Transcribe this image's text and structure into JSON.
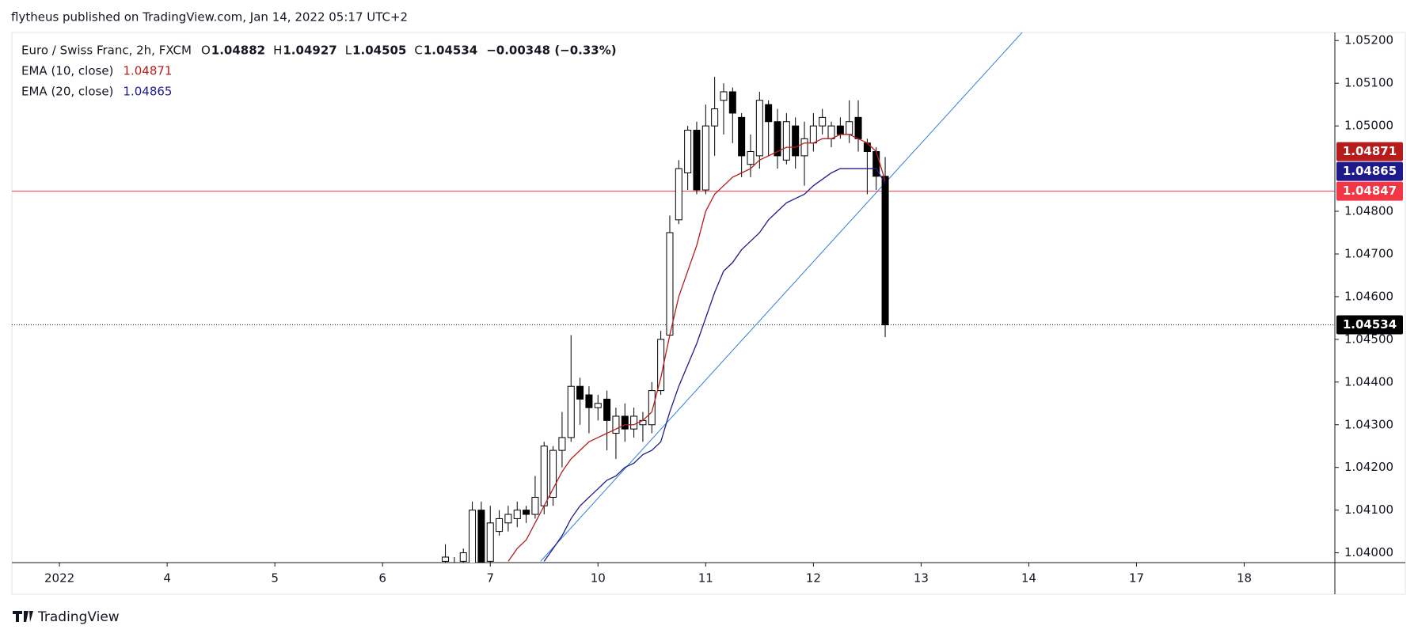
{
  "header": {
    "publisher": "flytheus published on TradingView.com, Jan 14, 2022 05:17 UTC+2",
    "footer": "TradingView"
  },
  "chart_data": {
    "type": "candlestick",
    "title": "Euro / Swiss Franc, 2h, FXCM",
    "legend_values": [
      {
        "label": "O",
        "value": "1.04882"
      },
      {
        "label": "H",
        "value": "1.04927"
      },
      {
        "label": "L",
        "value": "1.04505"
      },
      {
        "label": "C",
        "value": "1.04534"
      },
      {
        "label": "",
        "value": "−0.00348 (−0.33%)"
      }
    ],
    "x": [
      43,
      44,
      45,
      46,
      47,
      48,
      49,
      50,
      51,
      52,
      53,
      54,
      55,
      56,
      57,
      58,
      59,
      60,
      61,
      62,
      63,
      64,
      65,
      66,
      67,
      68,
      69,
      70,
      71,
      72,
      73,
      74,
      75,
      76,
      77,
      78,
      79,
      80,
      81,
      82,
      83,
      84,
      85,
      86,
      87,
      88,
      89,
      90,
      91,
      92
    ],
    "open": [
      1.0398,
      1.0397,
      1.0398,
      1.0397,
      1.041,
      1.0398,
      1.0405,
      1.0407,
      1.0408,
      1.041,
      1.0409,
      1.0411,
      1.0413,
      1.0424,
      1.0427,
      1.0439,
      1.0437,
      1.0434,
      1.0436,
      1.0428,
      1.0432,
      1.0429,
      1.043,
      1.043,
      1.0438,
      1.0451,
      1.0478,
      1.0489,
      1.0499,
      1.0485,
      1.05,
      1.0506,
      1.0508,
      1.0502,
      1.0491,
      1.0493,
      1.0505,
      1.0501,
      1.0492,
      1.05,
      1.0493,
      1.0496,
      1.05,
      1.0497,
      1.05,
      1.0498,
      1.0502,
      1.0496,
      1.0494,
      1.04882
    ],
    "high": [
      1.0402,
      1.0399,
      1.0401,
      1.0412,
      1.0412,
      1.0411,
      1.041,
      1.0411,
      1.0412,
      1.0411,
      1.0418,
      1.0426,
      1.0425,
      1.0433,
      1.0451,
      1.0441,
      1.0439,
      1.0437,
      1.0438,
      1.0434,
      1.0435,
      1.0434,
      1.0433,
      1.044,
      1.0452,
      1.0479,
      1.0492,
      1.05,
      1.0501,
      1.0505,
      1.05115,
      1.051,
      1.0509,
      1.0503,
      1.0498,
      1.0508,
      1.0506,
      1.0504,
      1.0503,
      1.0502,
      1.0501,
      1.0503,
      1.0504,
      1.0501,
      1.0502,
      1.0506,
      1.0506,
      1.0497,
      1.0495,
      1.04927
    ],
    "low": [
      1.0395,
      1.0394,
      1.0396,
      1.0395,
      1.0394,
      1.0396,
      1.0404,
      1.0405,
      1.0406,
      1.0407,
      1.0408,
      1.0409,
      1.0411,
      1.042,
      1.0426,
      1.043,
      1.0428,
      1.0431,
      1.0424,
      1.0422,
      1.0426,
      1.0427,
      1.0426,
      1.0428,
      1.0437,
      1.0451,
      1.0477,
      1.0485,
      1.0484,
      1.0484,
      1.0493,
      1.0498,
      1.0496,
      1.0488,
      1.0488,
      1.049,
      1.0493,
      1.049,
      1.0491,
      1.049,
      1.0486,
      1.0494,
      1.0498,
      1.0495,
      1.0497,
      1.0496,
      1.0494,
      1.0484,
      1.0485,
      1.04505
    ],
    "close": [
      1.0399,
      1.0396,
      1.04,
      1.041,
      1.0395,
      1.0407,
      1.0408,
      1.0409,
      1.041,
      1.0409,
      1.0413,
      1.0425,
      1.0424,
      1.0427,
      1.0439,
      1.0436,
      1.0434,
      1.0435,
      1.0431,
      1.0432,
      1.0429,
      1.0432,
      1.0431,
      1.0438,
      1.045,
      1.0475,
      1.049,
      1.0499,
      1.0485,
      1.05,
      1.0504,
      1.0508,
      1.0503,
      1.0493,
      1.0494,
      1.0506,
      1.0501,
      1.0493,
      1.0501,
      1.0493,
      1.0497,
      1.05,
      1.0502,
      1.05,
      1.0498,
      1.0501,
      1.0497,
      1.0494,
      1.04882,
      1.04534
    ],
    "series": [
      {
        "name": "EMA (10, close)",
        "color": "#b71c1c",
        "last": 1.04871,
        "x": [
          50,
          51,
          52,
          53,
          54,
          55,
          56,
          57,
          58,
          59,
          60,
          61,
          62,
          63,
          64,
          65,
          66,
          67,
          68,
          69,
          70,
          71,
          72,
          73,
          74,
          75,
          76,
          77,
          78,
          79,
          80,
          81,
          82,
          83,
          84,
          85,
          86,
          87,
          88,
          89,
          90,
          91,
          92
        ],
        "values": [
          1.0398,
          1.0401,
          1.0403,
          1.0407,
          1.0411,
          1.0415,
          1.0419,
          1.0422,
          1.0424,
          1.0426,
          1.0427,
          1.0428,
          1.0429,
          1.043,
          1.043,
          1.0431,
          1.0433,
          1.0441,
          1.0451,
          1.046,
          1.0466,
          1.0472,
          1.048,
          1.0484,
          1.0486,
          1.0488,
          1.0489,
          1.049,
          1.0492,
          1.0493,
          1.0494,
          1.0495,
          1.0495,
          1.0496,
          1.0496,
          1.0497,
          1.0497,
          1.0498,
          1.0498,
          1.0497,
          1.0496,
          1.0494,
          1.04871
        ]
      },
      {
        "name": "EMA (20, close)",
        "color": "#1f1a8c",
        "last": 1.04865,
        "x": [
          54,
          55,
          56,
          57,
          58,
          59,
          60,
          61,
          62,
          63,
          64,
          65,
          66,
          67,
          68,
          69,
          70,
          71,
          72,
          73,
          74,
          75,
          76,
          77,
          78,
          79,
          80,
          81,
          82,
          83,
          84,
          85,
          86,
          87,
          88,
          89,
          90,
          91,
          92
        ],
        "values": [
          1.0398,
          1.0401,
          1.0404,
          1.0408,
          1.0411,
          1.0413,
          1.0415,
          1.0417,
          1.0418,
          1.042,
          1.0421,
          1.0423,
          1.0424,
          1.0426,
          1.0433,
          1.0439,
          1.0444,
          1.0449,
          1.0455,
          1.0461,
          1.0466,
          1.0468,
          1.0471,
          1.0473,
          1.0475,
          1.0478,
          1.048,
          1.0482,
          1.0483,
          1.0484,
          1.0486,
          1.04875,
          1.0489,
          1.049,
          1.049,
          1.049,
          1.049,
          1.049,
          1.04865
        ]
      }
    ],
    "trendline": {
      "color": "#2f7fe0",
      "x": [
        53.6,
        107.3
      ],
      "y": [
        1.0398,
        1.0522
      ]
    },
    "hline": {
      "color": "#f23645",
      "value": 1.04847
    },
    "last_price": 1.04534,
    "xlim": [
      -5.3,
      142.1
    ],
    "ylim": [
      1.03977,
      1.05219
    ],
    "xticks": [
      {
        "value": 0,
        "label": "2022"
      },
      {
        "value": 12,
        "label": "4"
      },
      {
        "value": 24,
        "label": "5"
      },
      {
        "value": 36,
        "label": "6"
      },
      {
        "value": 48,
        "label": "7"
      },
      {
        "value": 60,
        "label": "10"
      },
      {
        "value": 72,
        "label": "11"
      },
      {
        "value": 84,
        "label": "12"
      },
      {
        "value": 96,
        "label": "13"
      },
      {
        "value": 108,
        "label": "14"
      },
      {
        "value": 120,
        "label": "17"
      },
      {
        "value": 132,
        "label": "18"
      }
    ],
    "yticks": [
      {
        "value": 1.052,
        "label": "1.05200"
      },
      {
        "value": 1.051,
        "label": "1.05100"
      },
      {
        "value": 1.05,
        "label": "1.05000"
      },
      {
        "value": 1.048,
        "label": "1.04800"
      },
      {
        "value": 1.047,
        "label": "1.04700"
      },
      {
        "value": 1.046,
        "label": "1.04600"
      },
      {
        "value": 1.045,
        "label": "1.04500"
      },
      {
        "value": 1.044,
        "label": "1.04400"
      },
      {
        "value": 1.043,
        "label": "1.04300"
      },
      {
        "value": 1.042,
        "label": "1.04200"
      },
      {
        "value": 1.041,
        "label": "1.04100"
      },
      {
        "value": 1.04,
        "label": "1.04000"
      }
    ]
  }
}
